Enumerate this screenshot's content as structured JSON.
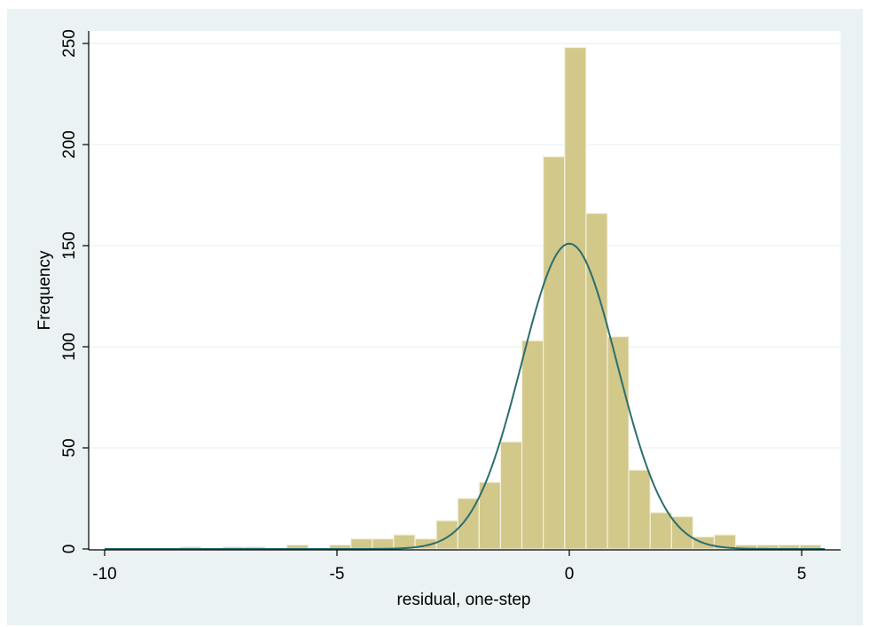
{
  "chart_data": {
    "type": "bar",
    "subtype": "histogram-with-normal-density",
    "title": "",
    "xlabel": "residual, one-step",
    "ylabel": "Frequency",
    "xlim": [
      -10,
      5.5
    ],
    "ylim": [
      0,
      250
    ],
    "x_ticks": [
      "-10",
      "-5",
      "0",
      "5"
    ],
    "y_ticks": [
      "0",
      "50",
      "100",
      "150",
      "200",
      "250"
    ],
    "bin_width": 0.46,
    "bins": [
      {
        "x0": -8.38,
        "count": 1
      },
      {
        "x0": -7.46,
        "count": 1
      },
      {
        "x0": -7.0,
        "count": 1
      },
      {
        "x0": -6.08,
        "count": 2
      },
      {
        "x0": -5.16,
        "count": 2
      },
      {
        "x0": -4.7,
        "count": 5
      },
      {
        "x0": -4.24,
        "count": 5
      },
      {
        "x0": -3.78,
        "count": 7
      },
      {
        "x0": -3.32,
        "count": 5
      },
      {
        "x0": -2.86,
        "count": 14
      },
      {
        "x0": -2.4,
        "count": 25
      },
      {
        "x0": -1.94,
        "count": 33
      },
      {
        "x0": -1.48,
        "count": 53
      },
      {
        "x0": -1.02,
        "count": 103
      },
      {
        "x0": -0.56,
        "count": 194
      },
      {
        "x0": -0.1,
        "count": 248
      },
      {
        "x0": 0.36,
        "count": 166
      },
      {
        "x0": 0.82,
        "count": 105
      },
      {
        "x0": 1.28,
        "count": 39
      },
      {
        "x0": 1.74,
        "count": 18
      },
      {
        "x0": 2.2,
        "count": 16
      },
      {
        "x0": 2.66,
        "count": 6
      },
      {
        "x0": 3.12,
        "count": 7
      },
      {
        "x0": 3.58,
        "count": 2
      },
      {
        "x0": 4.04,
        "count": 2
      },
      {
        "x0": 4.5,
        "count": 2
      },
      {
        "x0": 4.96,
        "count": 2
      }
    ],
    "normal_curve": {
      "mean": 0.0,
      "sd": 1.03,
      "peak": 151
    },
    "grid": true,
    "legend": "none",
    "colors": {
      "bar_fill": "#d1c88a",
      "bar_edge": "#f4f1df",
      "curve": "#2d6d6d",
      "plot_bg": "#ffffff",
      "outer_bg": "#eaf2f3",
      "grid": "#eaf2f3",
      "axis": "#000000"
    }
  }
}
